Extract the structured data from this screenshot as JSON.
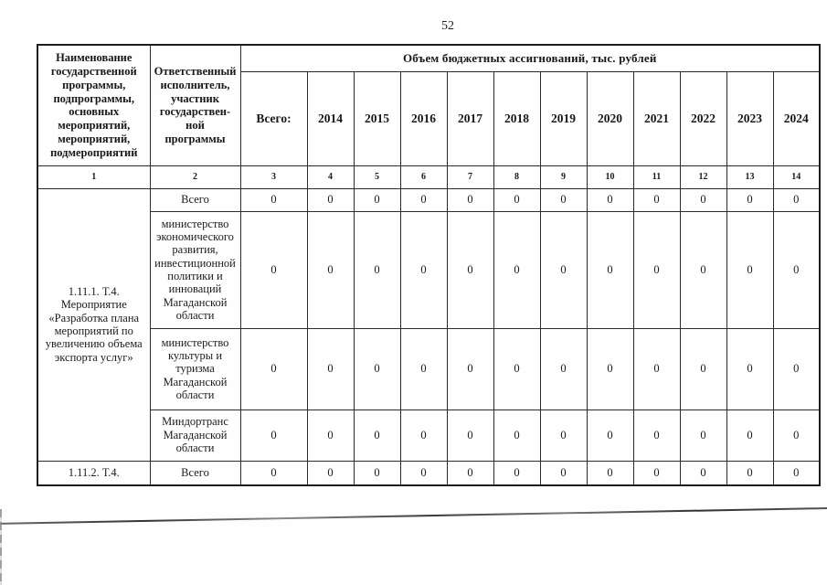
{
  "colors": {
    "paper": "#fefefe",
    "ink": "#1c1c1c",
    "border": "#2b2b2b"
  },
  "page": {
    "number": "52"
  },
  "table": {
    "header": {
      "col1": "Наименование\nгосударственной\nпрограммы,\nподпрограммы,\nосновных\nмероприятий,\nмероприятий,\nподмероприятий",
      "col2": "Ответственный\nисполнитель,\nучастник\nгосударствен-\nной\nпрограммы",
      "span": "Объем бюджетных ассигнований, тыс. рублей",
      "amount_cols": [
        "Всего:",
        "2014",
        "2015",
        "2016",
        "2017",
        "2018",
        "2019",
        "2020",
        "2021",
        "2022",
        "2023",
        "2024"
      ],
      "index_row": [
        "1",
        "2",
        "3",
        "4",
        "5",
        "6",
        "7",
        "8",
        "9",
        "10",
        "11",
        "12",
        "13",
        "14"
      ]
    },
    "rows": [
      {
        "name": "1.11.1. Т.4.\nМероприятие\n«Разработка плана\nмероприятий по\nувеличению объема\nэкспорта услуг»",
        "executor": "Всего",
        "values": [
          "0",
          "0",
          "0",
          "0",
          "0",
          "0",
          "0",
          "0",
          "0",
          "0",
          "0",
          "0"
        ]
      },
      {
        "executor": "министерство\nэкономического\nразвития,\nинвестиционной\nполитики и\nинноваций\nМагаданской\nобласти",
        "values": [
          "0",
          "0",
          "0",
          "0",
          "0",
          "0",
          "0",
          "0",
          "0",
          "0",
          "0",
          "0"
        ]
      },
      {
        "executor": "министерство\nкультуры и\nтуризма\nМагаданской\nобласти",
        "values": [
          "0",
          "0",
          "0",
          "0",
          "0",
          "0",
          "0",
          "0",
          "0",
          "0",
          "0",
          "0"
        ]
      },
      {
        "executor": "Миндортранс\nМагаданской\nобласти",
        "values": [
          "0",
          "0",
          "0",
          "0",
          "0",
          "0",
          "0",
          "0",
          "0",
          "0",
          "0",
          "0"
        ]
      },
      {
        "name": "1.11.2. Т.4.",
        "executor": "Всего",
        "values": [
          "0",
          "0",
          "0",
          "0",
          "0",
          "0",
          "0",
          "0",
          "0",
          "0",
          "0",
          "0"
        ]
      }
    ]
  }
}
